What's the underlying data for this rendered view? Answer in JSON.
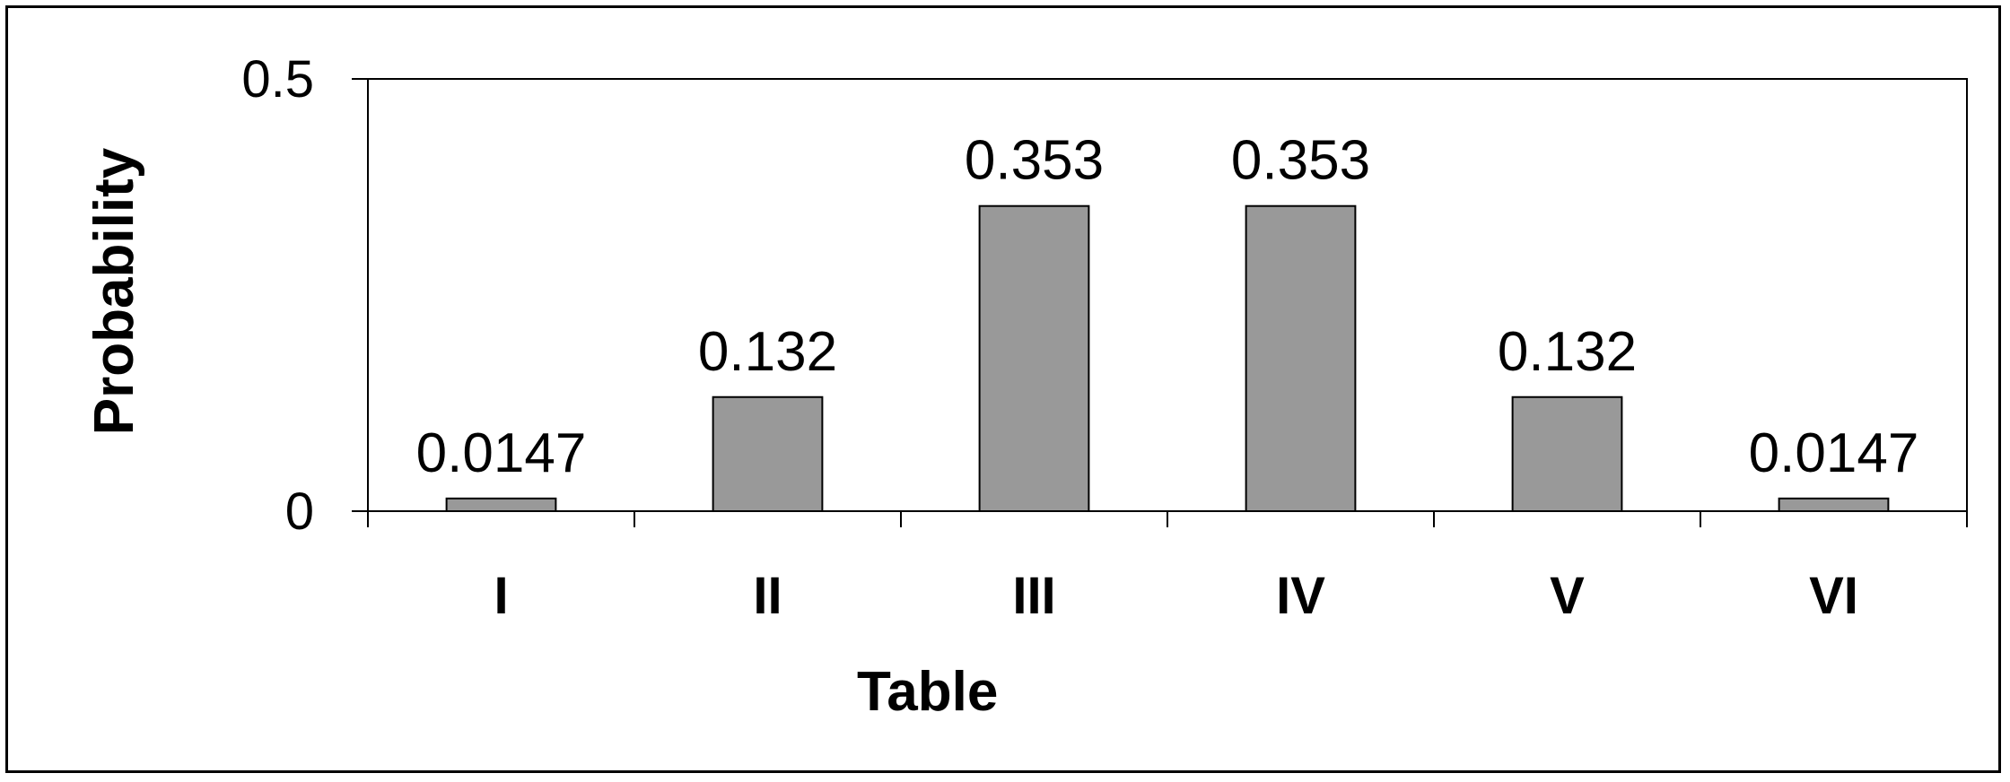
{
  "chart_data": {
    "type": "bar",
    "categories": [
      "I",
      "II",
      "III",
      "IV",
      "V",
      "VI"
    ],
    "values": [
      0.0147,
      0.132,
      0.353,
      0.353,
      0.132,
      0.0147
    ],
    "data_labels": [
      "0.0147",
      "0.132",
      "0.353",
      "0.353",
      "0.132",
      "0.0147"
    ],
    "xlabel": "Table",
    "ylabel": "Probability",
    "ylim": [
      0,
      0.5
    ],
    "y_ticks": [
      0,
      0.5
    ],
    "y_tick_labels": [
      "0",
      "0.5"
    ],
    "grid": false,
    "legend": "none",
    "colors": {
      "bar_fill": "#999999",
      "bar_stroke": "#000000",
      "axis": "#000000",
      "frame": "#000000",
      "background": "#ffffff"
    }
  }
}
